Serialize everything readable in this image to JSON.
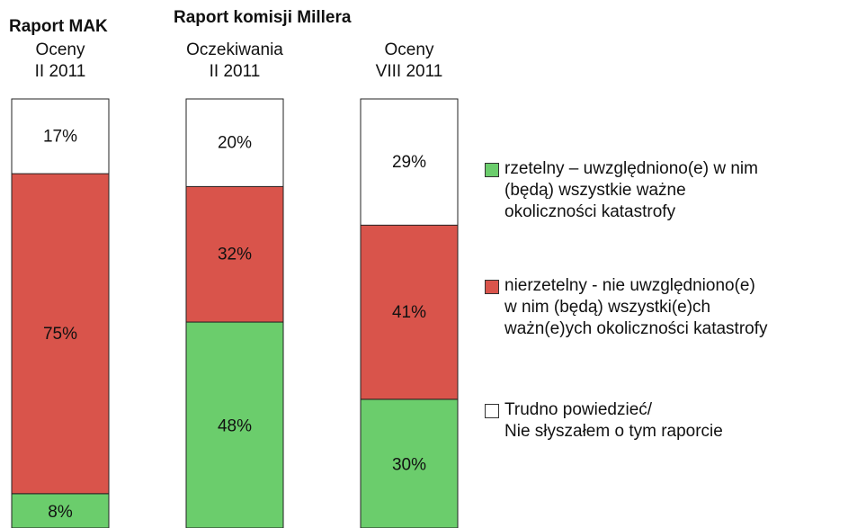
{
  "chart_data": {
    "type": "stacked_bar",
    "group_titles": [
      "Raport MAK",
      "Raport komisji Millera"
    ],
    "categories": [
      "Oceny\nII 2011",
      "Oczekiwania\nII 2011",
      "Oceny\nVIII 2011"
    ],
    "ylim": [
      0,
      100
    ],
    "series": [
      {
        "name": "rzetelny – uwzględniono(e) w nim\n(będą) wszystkie ważne\nokoliczności katastrofy",
        "color": "#6bcd6c",
        "values": [
          8,
          48,
          30
        ],
        "value_labels": [
          "8%",
          "48%",
          "30%"
        ]
      },
      {
        "name": "nierzetelny - nie uwzględniono(e)\nw nim (będą) wszystki(e)ch\nważn(e)ych okoliczności katastrofy",
        "color": "#d9544b",
        "values": [
          75,
          32,
          41
        ],
        "value_labels": [
          "75%",
          "32%",
          "41%"
        ]
      },
      {
        "name": "Trudno powiedzieć/\nNie słyszałem o tym raporcie",
        "color": "#ffffff",
        "values": [
          17,
          20,
          29
        ],
        "value_labels": [
          "17%",
          "20%",
          "29%"
        ]
      }
    ]
  }
}
